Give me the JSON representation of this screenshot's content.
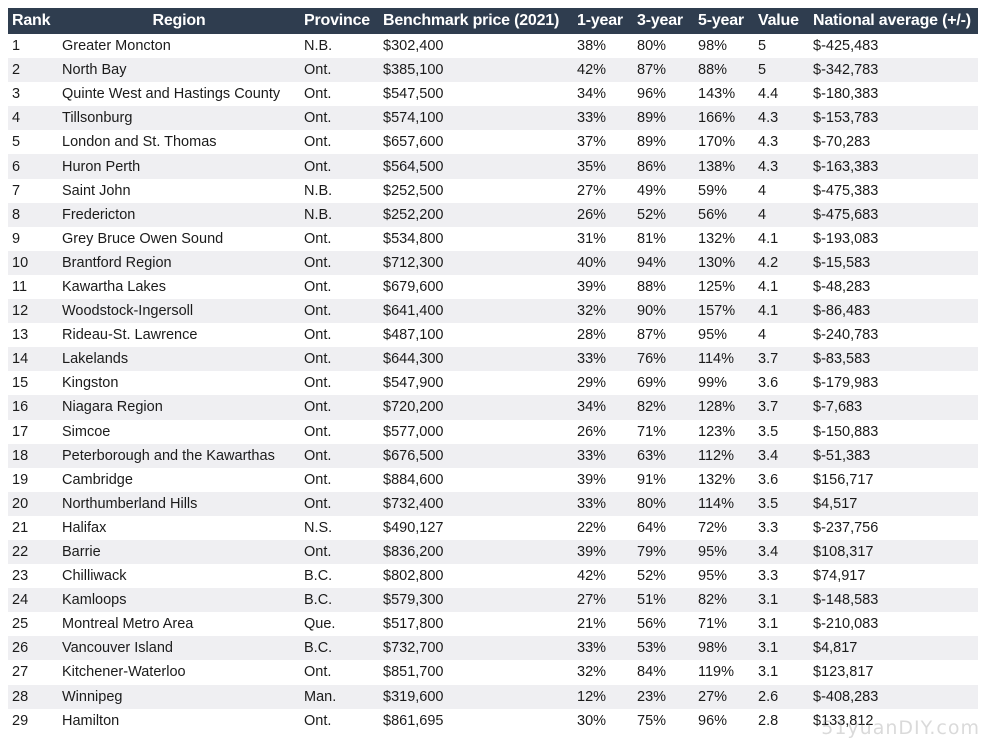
{
  "headers": {
    "rank": "Rank",
    "region": "Region",
    "province": "Province",
    "benchmark": "Benchmark price (2021)",
    "one_year": "1-year",
    "three_year": "3-year",
    "five_year": "5-year",
    "value": "Value",
    "national": "National average (+/-)"
  },
  "rows": [
    {
      "rank": "1",
      "region": "Greater Moncton",
      "province": "N.B.",
      "benchmark": "$302,400",
      "one_year": "38%",
      "three_year": "80%",
      "five_year": "98%",
      "value": "5",
      "national": "$-425,483"
    },
    {
      "rank": "2",
      "region": "North Bay",
      "province": "Ont.",
      "benchmark": "$385,100",
      "one_year": "42%",
      "three_year": "87%",
      "five_year": "88%",
      "value": "5",
      "national": "$-342,783"
    },
    {
      "rank": "3",
      "region": "Quinte West and Hastings County",
      "province": "Ont.",
      "benchmark": "$547,500",
      "one_year": "34%",
      "three_year": "96%",
      "five_year": "143%",
      "value": "4.4",
      "national": "$-180,383"
    },
    {
      "rank": "4",
      "region": "Tillsonburg",
      "province": "Ont.",
      "benchmark": "$574,100",
      "one_year": "33%",
      "three_year": "89%",
      "five_year": "166%",
      "value": "4.3",
      "national": "$-153,783"
    },
    {
      "rank": "5",
      "region": "London and St. Thomas",
      "province": "Ont.",
      "benchmark": "$657,600",
      "one_year": "37%",
      "three_year": "89%",
      "five_year": "170%",
      "value": "4.3",
      "national": "$-70,283"
    },
    {
      "rank": "6",
      "region": "Huron Perth",
      "province": "Ont.",
      "benchmark": "$564,500",
      "one_year": "35%",
      "three_year": "86%",
      "five_year": "138%",
      "value": "4.3",
      "national": "$-163,383"
    },
    {
      "rank": "7",
      "region": "Saint John",
      "province": "N.B.",
      "benchmark": "$252,500",
      "one_year": "27%",
      "three_year": "49%",
      "five_year": "59%",
      "value": "4",
      "national": "$-475,383"
    },
    {
      "rank": "8",
      "region": "Fredericton",
      "province": "N.B.",
      "benchmark": "$252,200",
      "one_year": "26%",
      "three_year": "52%",
      "five_year": "56%",
      "value": "4",
      "national": "$-475,683"
    },
    {
      "rank": "9",
      "region": "Grey Bruce Owen Sound",
      "province": "Ont.",
      "benchmark": "$534,800",
      "one_year": "31%",
      "three_year": "81%",
      "five_year": "132%",
      "value": "4.1",
      "national": "$-193,083"
    },
    {
      "rank": "10",
      "region": "Brantford Region",
      "province": "Ont.",
      "benchmark": "$712,300",
      "one_year": "40%",
      "three_year": "94%",
      "five_year": "130%",
      "value": "4.2",
      "national": "$-15,583"
    },
    {
      "rank": "11",
      "region": "Kawartha Lakes",
      "province": "Ont.",
      "benchmark": "$679,600",
      "one_year": "39%",
      "three_year": "88%",
      "five_year": "125%",
      "value": "4.1",
      "national": "$-48,283"
    },
    {
      "rank": "12",
      "region": "Woodstock-Ingersoll",
      "province": "Ont.",
      "benchmark": "$641,400",
      "one_year": "32%",
      "three_year": "90%",
      "five_year": "157%",
      "value": "4.1",
      "national": "$-86,483"
    },
    {
      "rank": "13",
      "region": "Rideau-St. Lawrence",
      "province": "Ont.",
      "benchmark": "$487,100",
      "one_year": "28%",
      "three_year": "87%",
      "five_year": "95%",
      "value": "4",
      "national": "$-240,783"
    },
    {
      "rank": "14",
      "region": "Lakelands",
      "province": "Ont.",
      "benchmark": "$644,300",
      "one_year": "33%",
      "three_year": "76%",
      "five_year": "114%",
      "value": "3.7",
      "national": "$-83,583"
    },
    {
      "rank": "15",
      "region": "Kingston",
      "province": "Ont.",
      "benchmark": "$547,900",
      "one_year": "29%",
      "three_year": "69%",
      "five_year": "99%",
      "value": "3.6",
      "national": "$-179,983"
    },
    {
      "rank": "16",
      "region": "Niagara Region",
      "province": "Ont.",
      "benchmark": "$720,200",
      "one_year": "34%",
      "three_year": "82%",
      "five_year": "128%",
      "value": "3.7",
      "national": "$-7,683"
    },
    {
      "rank": "17",
      "region": "Simcoe",
      "province": "Ont.",
      "benchmark": "$577,000",
      "one_year": "26%",
      "three_year": "71%",
      "five_year": "123%",
      "value": "3.5",
      "national": "$-150,883"
    },
    {
      "rank": "18",
      "region": "Peterborough and the Kawarthas",
      "province": "Ont.",
      "benchmark": "$676,500",
      "one_year": "33%",
      "three_year": "63%",
      "five_year": "112%",
      "value": "3.4",
      "national": "$-51,383"
    },
    {
      "rank": "19",
      "region": "Cambridge",
      "province": "Ont.",
      "benchmark": "$884,600",
      "one_year": "39%",
      "three_year": "91%",
      "five_year": "132%",
      "value": "3.6",
      "national": "$156,717"
    },
    {
      "rank": "20",
      "region": "Northumberland Hills",
      "province": "Ont.",
      "benchmark": "$732,400",
      "one_year": "33%",
      "three_year": "80%",
      "five_year": "114%",
      "value": "3.5",
      "national": "$4,517"
    },
    {
      "rank": "21",
      "region": "Halifax",
      "province": "N.S.",
      "benchmark": "$490,127",
      "one_year": "22%",
      "three_year": "64%",
      "five_year": "72%",
      "value": "3.3",
      "national": "$-237,756"
    },
    {
      "rank": "22",
      "region": "Barrie",
      "province": "Ont.",
      "benchmark": "$836,200",
      "one_year": "39%",
      "three_year": "79%",
      "five_year": "95%",
      "value": "3.4",
      "national": "$108,317"
    },
    {
      "rank": "23",
      "region": "Chilliwack",
      "province": "B.C.",
      "benchmark": "$802,800",
      "one_year": "42%",
      "three_year": "52%",
      "five_year": "95%",
      "value": "3.3",
      "national": "$74,917"
    },
    {
      "rank": "24",
      "region": "Kamloops",
      "province": "B.C.",
      "benchmark": "$579,300",
      "one_year": "27%",
      "three_year": "51%",
      "five_year": "82%",
      "value": "3.1",
      "national": "$-148,583"
    },
    {
      "rank": "25",
      "region": "Montreal Metro Area",
      "province": "Que.",
      "benchmark": "$517,800",
      "one_year": "21%",
      "three_year": "56%",
      "five_year": "71%",
      "value": "3.1",
      "national": "$-210,083"
    },
    {
      "rank": "26",
      "region": "Vancouver Island",
      "province": "B.C.",
      "benchmark": "$732,700",
      "one_year": "33%",
      "three_year": "53%",
      "five_year": "98%",
      "value": "3.1",
      "national": "$4,817"
    },
    {
      "rank": "27",
      "region": "Kitchener-Waterloo",
      "province": "Ont.",
      "benchmark": "$851,700",
      "one_year": "32%",
      "three_year": "84%",
      "five_year": "119%",
      "value": "3.1",
      "national": "$123,817"
    },
    {
      "rank": "28",
      "region": "Winnipeg",
      "province": "Man.",
      "benchmark": "$319,600",
      "one_year": "12%",
      "three_year": "23%",
      "five_year": "27%",
      "value": "2.6",
      "national": "$-408,283"
    },
    {
      "rank": "29",
      "region": "Hamilton",
      "province": "Ont.",
      "benchmark": "$861,695",
      "one_year": "30%",
      "three_year": "75%",
      "five_year": "96%",
      "value": "2.8",
      "national": "$133,812"
    }
  ],
  "watermark": "51yuanDIY.com",
  "colors": {
    "header_bg": "#2f3d4f",
    "header_text": "#ffffff",
    "stripe": "#efeff2"
  }
}
